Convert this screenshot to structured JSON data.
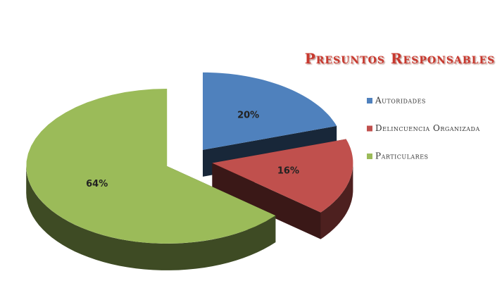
{
  "chart_data": {
    "type": "pie3d",
    "title": "Presuntos Responsables",
    "categories": [
      "Autoridades",
      "Delincuencia Organizada",
      "Particulares"
    ],
    "values": [
      20,
      16,
      64
    ],
    "value_labels": [
      "20%",
      "16%",
      "64%"
    ],
    "colors": [
      "#4f81bd",
      "#c0504d",
      "#9bbb59"
    ],
    "legend": "right"
  }
}
